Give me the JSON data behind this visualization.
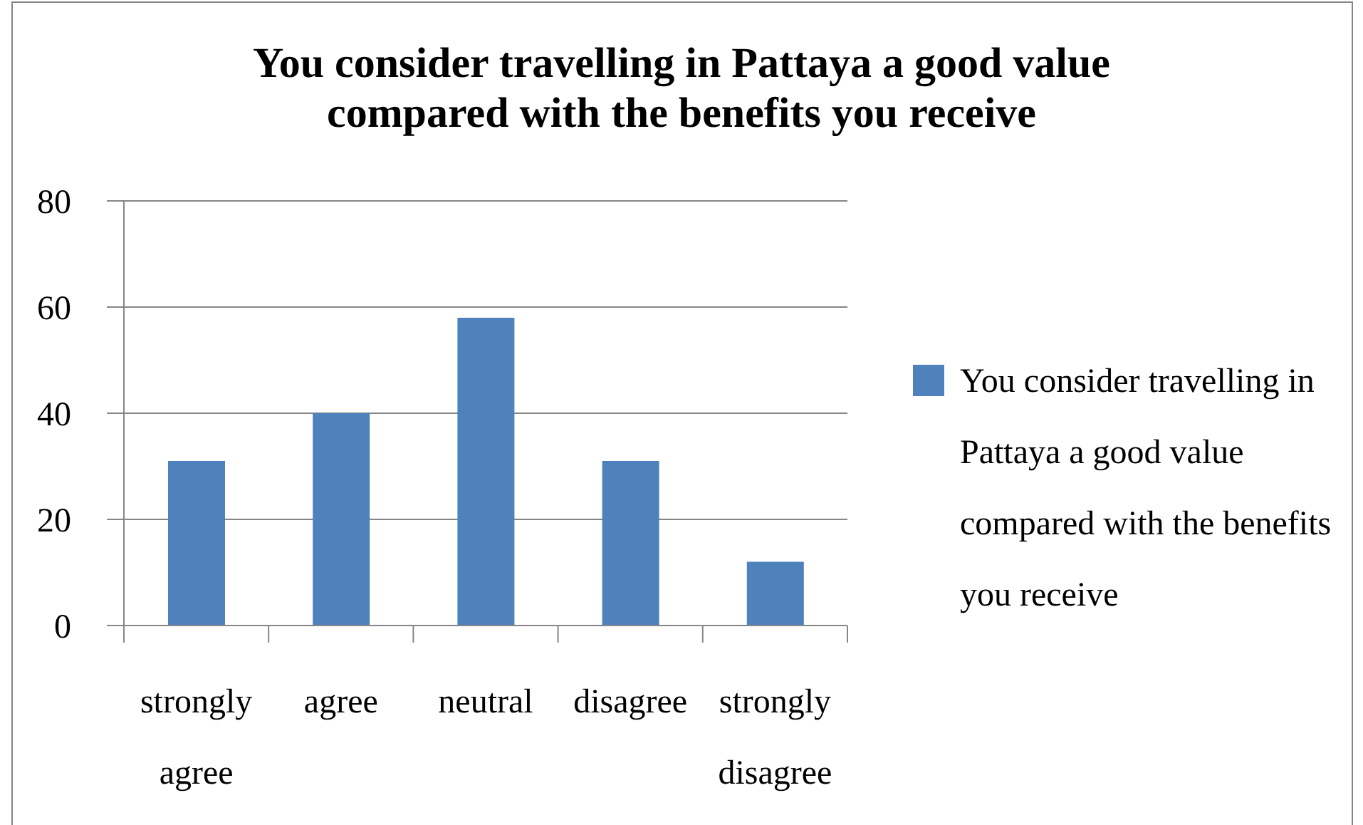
{
  "chart_data": {
    "type": "bar",
    "title": "You consider travelling in Pattaya a good value compared with the benefits you receive",
    "categories": [
      "strongly agree",
      "agree",
      "neutral",
      "disagree",
      "strongly disagree"
    ],
    "series": [
      {
        "name": "You consider travelling in Pattaya a good value compared with the benefits you receive",
        "color": "#4f81bd",
        "values": [
          31,
          40,
          58,
          31,
          12
        ]
      }
    ],
    "ylim": [
      0,
      80
    ],
    "yticks": [
      0,
      20,
      40,
      60,
      80
    ],
    "grid": "y",
    "legend": "right"
  }
}
